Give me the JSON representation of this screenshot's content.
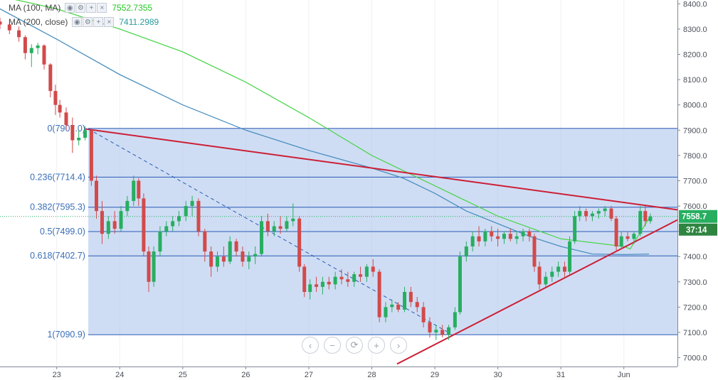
{
  "legend": {
    "ma100": {
      "label": "MA (100, MA)",
      "value": "7552.7355",
      "value_color": "#25c725"
    },
    "ma200": {
      "label": "MA (200, close)",
      "value": "7411.2989",
      "value_color": "#2b9a9a"
    },
    "buttons": [
      "eye-icon",
      "gear-icon",
      "plus-icon",
      "close-icon"
    ]
  },
  "navigation": {
    "buttons": [
      "chevron-left-icon",
      "zoom-out-icon",
      "reset-icon",
      "zoom-in-icon",
      "chevron-right-icon"
    ],
    "glyphs": [
      "‹",
      "−",
      "⟳",
      "+",
      "›"
    ]
  },
  "price_tag": {
    "value": "7558.7",
    "countdown": "37:14",
    "color": "#27ae60",
    "countdown_color": "#2e8540"
  },
  "colors": {
    "up": "#27ae60",
    "down": "#d24a4a",
    "ma100": "#4cd64c",
    "ma200": "#4a8fbf",
    "trend": "#cc1f36",
    "fib_line": "#2a5bb5",
    "fib_fill": "rgba(160,188,234,0.5)"
  },
  "chart_data": {
    "type": "candlestick",
    "x_tick_labels": [
      "23",
      "24",
      "25",
      "26",
      "27",
      "28",
      "29",
      "30",
      "31",
      "Jun"
    ],
    "y_tick_labels": [
      "7000.0",
      "7100.0",
      "7200.0",
      "7300.0",
      "7400.0",
      "7500.0",
      "7600.0",
      "7700.0",
      "7800.0",
      "7900.0",
      "8000.0",
      "8100.0",
      "8200.0",
      "8300.0",
      "8400.0"
    ],
    "ylim": [
      6965,
      8415
    ],
    "xlim": [
      22.1,
      32.85
    ],
    "fibonacci": [
      {
        "label": "0(7907.0)",
        "price": 7907.0
      },
      {
        "label": "0.236(7714.4)",
        "price": 7714.4
      },
      {
        "label": "0.382(7595.3)",
        "price": 7595.3
      },
      {
        "label": "0.5(7499.0)",
        "price": 7499.0
      },
      {
        "label": "0.618(7402.7)",
        "price": 7402.7
      },
      {
        "label": "1(7090.9)",
        "price": 7090.9
      }
    ],
    "fib_range_start_x": 23.5,
    "current_price": 7558.7,
    "ma100": [
      [
        22.1,
        8430
      ],
      [
        23,
        8380
      ],
      [
        24,
        8300
      ],
      [
        25,
        8210
      ],
      [
        26,
        8090
      ],
      [
        27,
        7950
      ],
      [
        28,
        7800
      ],
      [
        29,
        7680
      ],
      [
        30,
        7560
      ],
      [
        31,
        7470
      ],
      [
        32,
        7440
      ],
      [
        32.1,
        7430
      ],
      [
        32.4,
        7552
      ]
    ],
    "ma200": [
      [
        22.1,
        8380
      ],
      [
        23,
        8260
      ],
      [
        24,
        8120
      ],
      [
        25,
        8000
      ],
      [
        26,
        7900
      ],
      [
        27,
        7820
      ],
      [
        28,
        7750
      ],
      [
        28.5,
        7710
      ],
      [
        29,
        7650
      ],
      [
        29.5,
        7580
      ],
      [
        30,
        7530
      ],
      [
        30.5,
        7480
      ],
      [
        31,
        7440
      ],
      [
        31.5,
        7410
      ],
      [
        32,
        7408
      ],
      [
        32.4,
        7410
      ]
    ],
    "trend_lines": [
      {
        "name": "descending resistance",
        "points": [
          [
            23.45,
            7905
          ],
          [
            32.85,
            7585
          ]
        ]
      },
      {
        "name": "ascending support",
        "points": [
          [
            28.4,
            6975
          ],
          [
            32.85,
            7545
          ]
        ]
      },
      {
        "name": "dashed decline",
        "dashed": true,
        "points": [
          [
            23.5,
            7905
          ],
          [
            29.25,
            7095
          ]
        ]
      }
    ],
    "candles": [
      [
        22.1,
        8330,
        8345,
        8300,
        8318
      ],
      [
        22.25,
        8318,
        8335,
        8280,
        8295
      ],
      [
        22.4,
        8295,
        8310,
        8250,
        8268
      ],
      [
        22.5,
        8268,
        8275,
        8180,
        8205
      ],
      [
        22.6,
        8205,
        8240,
        8150,
        8225
      ],
      [
        22.7,
        8225,
        8245,
        8200,
        8235
      ],
      [
        22.8,
        8235,
        8240,
        8140,
        8160
      ],
      [
        22.9,
        8160,
        8165,
        8030,
        8055
      ],
      [
        22.98,
        8055,
        8080,
        7960,
        8000
      ],
      [
        23.05,
        8000,
        8020,
        7950,
        7970
      ],
      [
        23.15,
        7970,
        7990,
        7900,
        7920
      ],
      [
        23.25,
        7920,
        7950,
        7810,
        7860
      ],
      [
        23.35,
        7860,
        7900,
        7840,
        7870
      ],
      [
        23.45,
        7870,
        7915,
        7860,
        7900
      ],
      [
        23.55,
        7900,
        7905,
        7680,
        7700
      ],
      [
        23.63,
        7700,
        7720,
        7550,
        7580
      ],
      [
        23.72,
        7580,
        7620,
        7450,
        7490
      ],
      [
        23.82,
        7490,
        7560,
        7470,
        7540
      ],
      [
        23.92,
        7540,
        7580,
        7490,
        7510
      ],
      [
        24.02,
        7510,
        7600,
        7500,
        7580
      ],
      [
        24.12,
        7580,
        7640,
        7560,
        7620
      ],
      [
        24.22,
        7620,
        7720,
        7600,
        7700
      ],
      [
        24.3,
        7700,
        7710,
        7600,
        7630
      ],
      [
        24.38,
        7630,
        7650,
        7400,
        7420
      ],
      [
        24.46,
        7420,
        7440,
        7260,
        7300
      ],
      [
        24.54,
        7300,
        7440,
        7280,
        7420
      ],
      [
        24.64,
        7420,
        7520,
        7400,
        7500
      ],
      [
        24.74,
        7500,
        7540,
        7480,
        7520
      ],
      [
        24.84,
        7520,
        7560,
        7500,
        7540
      ],
      [
        24.94,
        7540,
        7580,
        7520,
        7560
      ],
      [
        25.05,
        7560,
        7620,
        7540,
        7600
      ],
      [
        25.15,
        7600,
        7640,
        7560,
        7620
      ],
      [
        25.25,
        7620,
        7630,
        7480,
        7500
      ],
      [
        25.35,
        7500,
        7510,
        7380,
        7420
      ],
      [
        25.45,
        7420,
        7440,
        7320,
        7360
      ],
      [
        25.55,
        7360,
        7420,
        7340,
        7400
      ],
      [
        25.65,
        7400,
        7440,
        7360,
        7380
      ],
      [
        25.75,
        7380,
        7480,
        7370,
        7460
      ],
      [
        25.85,
        7460,
        7470,
        7400,
        7420
      ],
      [
        25.95,
        7420,
        7440,
        7360,
        7380
      ],
      [
        26.05,
        7380,
        7420,
        7350,
        7400
      ],
      [
        26.15,
        7400,
        7440,
        7370,
        7410
      ],
      [
        26.25,
        7410,
        7560,
        7400,
        7540
      ],
      [
        26.35,
        7540,
        7570,
        7480,
        7500
      ],
      [
        26.45,
        7500,
        7540,
        7480,
        7520
      ],
      [
        26.55,
        7520,
        7560,
        7490,
        7510
      ],
      [
        26.65,
        7510,
        7560,
        7500,
        7540
      ],
      [
        26.75,
        7540,
        7610,
        7520,
        7550
      ],
      [
        26.85,
        7550,
        7560,
        7340,
        7360
      ],
      [
        26.93,
        7360,
        7370,
        7240,
        7260
      ],
      [
        27.02,
        7260,
        7310,
        7230,
        7290
      ],
      [
        27.12,
        7290,
        7320,
        7260,
        7280
      ],
      [
        27.22,
        7280,
        7320,
        7250,
        7300
      ],
      [
        27.32,
        7300,
        7320,
        7270,
        7290
      ],
      [
        27.42,
        7290,
        7340,
        7270,
        7320
      ],
      [
        27.52,
        7320,
        7350,
        7290,
        7310
      ],
      [
        27.62,
        7310,
        7340,
        7280,
        7300
      ],
      [
        27.72,
        7300,
        7340,
        7280,
        7330
      ],
      [
        27.82,
        7330,
        7360,
        7300,
        7320
      ],
      [
        27.92,
        7320,
        7370,
        7300,
        7360
      ],
      [
        28.02,
        7360,
        7390,
        7320,
        7340
      ],
      [
        28.12,
        7340,
        7350,
        7140,
        7160
      ],
      [
        28.22,
        7160,
        7220,
        7140,
        7200
      ],
      [
        28.32,
        7200,
        7230,
        7180,
        7210
      ],
      [
        28.42,
        7210,
        7220,
        7180,
        7190
      ],
      [
        28.52,
        7190,
        7280,
        7180,
        7260
      ],
      [
        28.62,
        7260,
        7280,
        7200,
        7220
      ],
      [
        28.72,
        7220,
        7240,
        7180,
        7200
      ],
      [
        28.82,
        7200,
        7220,
        7120,
        7140
      ],
      [
        28.92,
        7140,
        7160,
        7080,
        7100
      ],
      [
        29.02,
        7100,
        7130,
        7070,
        7110
      ],
      [
        29.12,
        7110,
        7130,
        7080,
        7090
      ],
      [
        29.22,
        7090,
        7130,
        7070,
        7120
      ],
      [
        29.32,
        7120,
        7200,
        7110,
        7180
      ],
      [
        29.4,
        7180,
        7420,
        7170,
        7400
      ],
      [
        29.5,
        7400,
        7460,
        7380,
        7440
      ],
      [
        29.6,
        7440,
        7500,
        7420,
        7480
      ],
      [
        29.7,
        7480,
        7520,
        7440,
        7460
      ],
      [
        29.8,
        7460,
        7510,
        7440,
        7500
      ],
      [
        29.9,
        7500,
        7520,
        7460,
        7480
      ],
      [
        30.0,
        7480,
        7510,
        7440,
        7470
      ],
      [
        30.1,
        7470,
        7500,
        7450,
        7490
      ],
      [
        30.2,
        7490,
        7510,
        7460,
        7470
      ],
      [
        30.3,
        7470,
        7500,
        7450,
        7480
      ],
      [
        30.4,
        7480,
        7510,
        7460,
        7500
      ],
      [
        30.5,
        7500,
        7510,
        7460,
        7480
      ],
      [
        30.58,
        7480,
        7490,
        7340,
        7360
      ],
      [
        30.66,
        7360,
        7380,
        7270,
        7290
      ],
      [
        30.76,
        7290,
        7340,
        7280,
        7320
      ],
      [
        30.86,
        7320,
        7360,
        7300,
        7340
      ],
      [
        30.96,
        7340,
        7380,
        7320,
        7360
      ],
      [
        31.06,
        7360,
        7380,
        7320,
        7340
      ],
      [
        31.14,
        7340,
        7480,
        7330,
        7460
      ],
      [
        31.22,
        7460,
        7580,
        7450,
        7560
      ],
      [
        31.3,
        7560,
        7600,
        7540,
        7580
      ],
      [
        31.4,
        7580,
        7590,
        7540,
        7560
      ],
      [
        31.5,
        7560,
        7580,
        7540,
        7570
      ],
      [
        31.6,
        7570,
        7590,
        7550,
        7580
      ],
      [
        31.7,
        7580,
        7600,
        7560,
        7590
      ],
      [
        31.8,
        7590,
        7600,
        7540,
        7550
      ],
      [
        31.88,
        7550,
        7560,
        7420,
        7440
      ],
      [
        31.96,
        7440,
        7500,
        7430,
        7480
      ],
      [
        32.06,
        7480,
        7500,
        7460,
        7470
      ],
      [
        32.16,
        7470,
        7500,
        7450,
        7490
      ],
      [
        32.26,
        7490,
        7600,
        7480,
        7580
      ],
      [
        32.34,
        7580,
        7600,
        7520,
        7540
      ],
      [
        32.42,
        7540,
        7570,
        7530,
        7559
      ]
    ]
  }
}
